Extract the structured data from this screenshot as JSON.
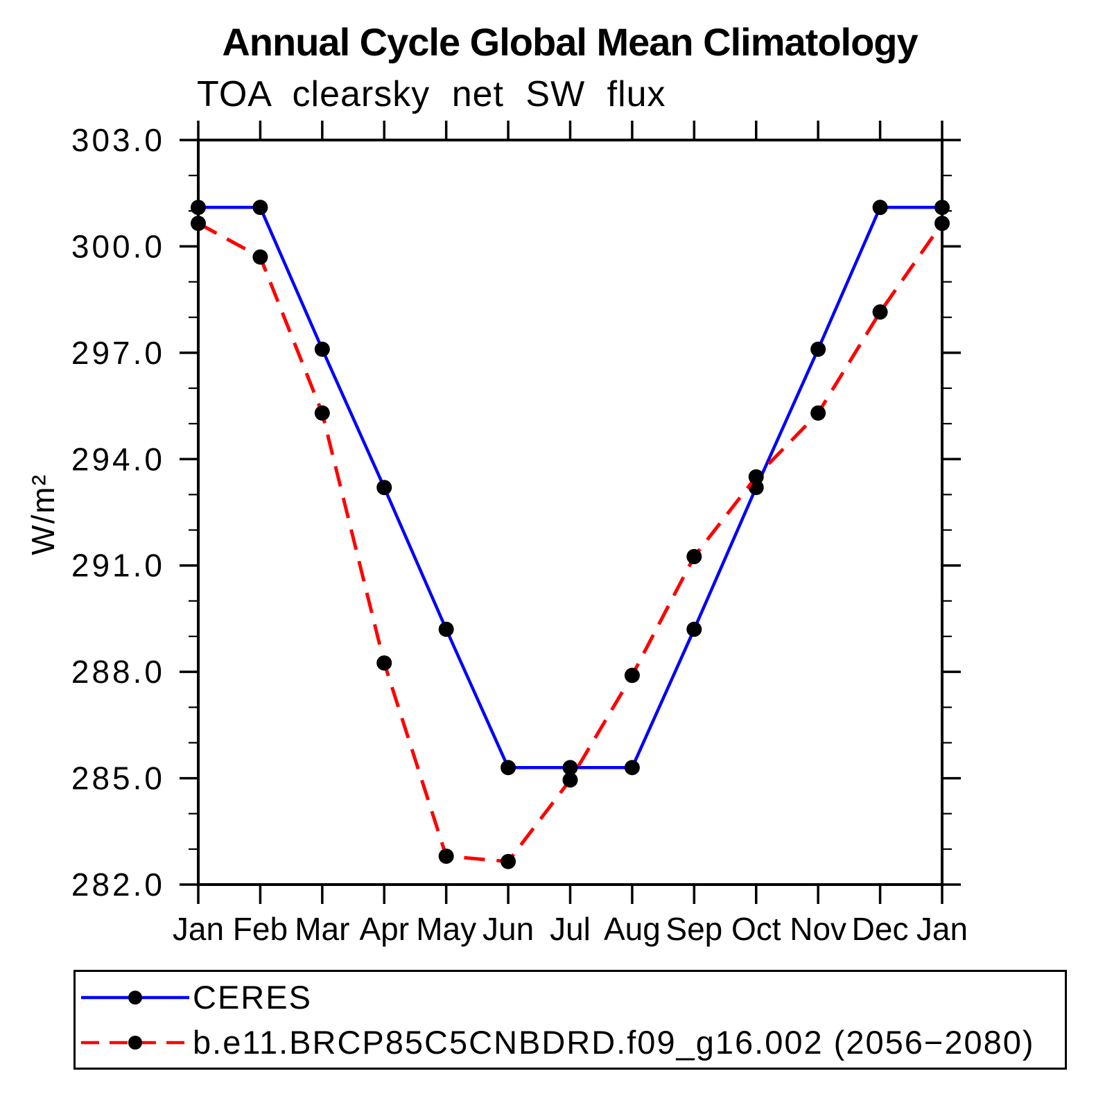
{
  "chart_data": {
    "type": "line",
    "title": "Annual Cycle Global Mean Climatology",
    "subtitle": "TOA clearsky net SW flux",
    "ylabel": "W/m²",
    "categories": [
      "Jan",
      "Feb",
      "Mar",
      "Apr",
      "May",
      "Jun",
      "Jul",
      "Aug",
      "Sep",
      "Oct",
      "Nov",
      "Dec",
      "Jan"
    ],
    "series": [
      {
        "name": "CERES",
        "color": "#0000ff",
        "line_style": "solid",
        "marker": "filled-circle",
        "marker_color": "#000000",
        "values": [
          301.1,
          301.1,
          297.1,
          293.2,
          289.2,
          285.3,
          285.3,
          285.3,
          289.2,
          293.2,
          297.1,
          301.1,
          301.1
        ]
      },
      {
        "name": "b.e11.BRCP85C5CNBDRD.f09_g16.002 (2056−2080)",
        "color": "#ff0000",
        "line_style": "dashed",
        "marker": "filled-circle",
        "marker_color": "#000000",
        "values": [
          300.65,
          299.7,
          295.3,
          288.25,
          282.8,
          282.65,
          284.95,
          287.9,
          291.25,
          293.5,
          295.3,
          298.15,
          300.65
        ]
      }
    ],
    "ylim": [
      282.0,
      303.0
    ],
    "ytick_major_interval": 3.0,
    "ytick_minor_interval": 1.0,
    "ytick_labels": [
      "303.0",
      "300.0",
      "297.0",
      "294.0",
      "291.0",
      "288.0",
      "285.0",
      "282.0"
    ],
    "grid": false,
    "legend_position": "bottom-left-box",
    "axis_color": "#000000",
    "background_color": "#ffffff"
  }
}
